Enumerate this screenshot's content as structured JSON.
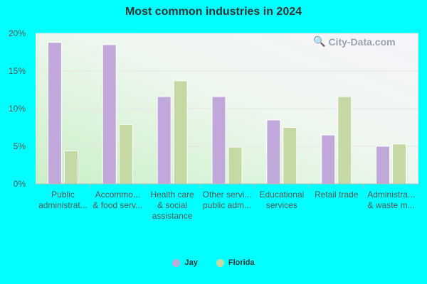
{
  "chart_data": {
    "type": "bar",
    "title": "Most common industries in 2024",
    "categories": [
      [
        "Public",
        "administrat..."
      ],
      [
        "Accommo...",
        "& food serv..."
      ],
      [
        "Health care",
        "& social",
        "assistance"
      ],
      [
        "Other servi...",
        "public adm..."
      ],
      [
        "Educational",
        "services"
      ],
      [
        "Retail trade"
      ],
      [
        "Administra...",
        "& waste m..."
      ]
    ],
    "series": [
      {
        "name": "Jay",
        "values": [
          18.8,
          18.5,
          11.6,
          11.6,
          8.5,
          6.5,
          5.0
        ]
      },
      {
        "name": "Florida",
        "values": [
          4.4,
          7.9,
          13.7,
          4.9,
          7.5,
          11.6,
          5.3
        ]
      }
    ],
    "ylim": [
      0,
      20
    ],
    "yticks": [
      "0%",
      "5%",
      "10%",
      "15%",
      "20%"
    ],
    "ytick_values": [
      0,
      5,
      10,
      15,
      20
    ],
    "grid": true,
    "legend": "bottom-center"
  },
  "colors": {
    "Jay": "#c0a8da",
    "Florida": "#c5d9a5"
  },
  "watermark": "City-Data.com"
}
